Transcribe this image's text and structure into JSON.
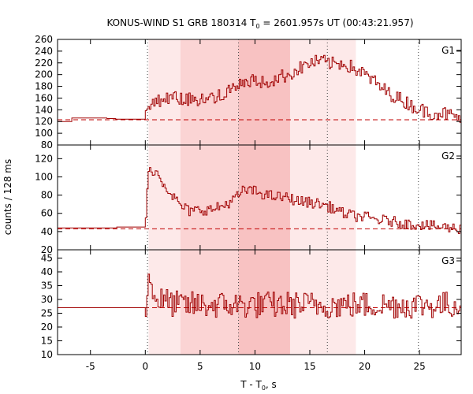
{
  "chart_data": {
    "type": "line",
    "title": "KONUS-WIND S1 GRB 180314 T",
    "title_sub": "0",
    "title_rest": " = 2601.957s UT (00:43:21.957)",
    "xlabel": "T - T",
    "xlabel_sub": "0",
    "xlabel_rest": ", s",
    "ylabel": "counts / 128 ms",
    "xlim": [
      -8,
      28.8
    ],
    "x_ticks": [
      -5,
      0,
      5,
      10,
      15,
      20,
      25
    ],
    "vertical_markers": [
      0.2,
      8.5,
      16.6,
      24.9
    ],
    "shaded_intervals": [
      {
        "x0": 0.3,
        "x1": 3.2,
        "level": "light"
      },
      {
        "x0": 3.2,
        "x1": 13.2,
        "level": "medium"
      },
      {
        "x0": 8.5,
        "x1": 13.2,
        "level": "dark"
      },
      {
        "x0": 13.2,
        "x1": 19.2,
        "level": "light"
      }
    ],
    "panels": [
      {
        "name": "G1",
        "ylim": [
          80,
          260
        ],
        "y_ticks": [
          80,
          100,
          120,
          140,
          160,
          180,
          200,
          220,
          240,
          260
        ],
        "background": 123,
        "pre_trigger": [
          [
            -8,
            120
          ],
          [
            -6.7,
            126
          ],
          [
            -3.5,
            125
          ],
          [
            -2.7,
            124
          ]
        ],
        "anchors": [
          [
            0,
            128
          ],
          [
            0.5,
            150
          ],
          [
            2,
            160
          ],
          [
            4,
            158
          ],
          [
            6,
            160
          ],
          [
            7,
            165
          ],
          [
            8,
            175
          ],
          [
            9,
            185
          ],
          [
            10,
            190
          ],
          [
            11,
            185
          ],
          [
            12,
            195
          ],
          [
            13,
            200
          ],
          [
            14,
            210
          ],
          [
            15,
            220
          ],
          [
            16,
            223
          ],
          [
            17,
            218
          ],
          [
            18,
            220
          ],
          [
            19,
            210
          ],
          [
            20,
            200
          ],
          [
            21,
            185
          ],
          [
            22,
            170
          ],
          [
            23,
            160
          ],
          [
            24,
            150
          ],
          [
            25,
            140
          ],
          [
            26,
            135
          ],
          [
            27,
            135
          ],
          [
            28.8,
            125
          ]
        ],
        "noise": 12
      },
      {
        "name": "G2",
        "ylim": [
          20,
          135
        ],
        "y_ticks": [
          20,
          40,
          60,
          80,
          100,
          120
        ],
        "background": 43,
        "pre_trigger": [
          [
            -8,
            44
          ],
          [
            -2.6,
            45
          ]
        ],
        "anchors": [
          [
            0,
            50
          ],
          [
            0.2,
            105
          ],
          [
            0.8,
            108
          ],
          [
            1.5,
            95
          ],
          [
            2.3,
            82
          ],
          [
            3,
            70
          ],
          [
            4,
            62
          ],
          [
            5,
            64
          ],
          [
            6,
            64
          ],
          [
            7,
            68
          ],
          [
            8,
            75
          ],
          [
            9,
            86
          ],
          [
            10,
            84
          ],
          [
            11,
            80
          ],
          [
            12,
            78
          ],
          [
            13,
            77
          ],
          [
            14,
            73
          ],
          [
            15,
            72
          ],
          [
            16,
            70
          ],
          [
            17,
            66
          ],
          [
            18,
            60
          ],
          [
            19,
            57
          ],
          [
            20,
            56
          ],
          [
            21,
            53
          ],
          [
            22,
            52
          ],
          [
            23,
            50
          ],
          [
            24,
            48
          ],
          [
            25,
            48
          ],
          [
            26,
            46
          ],
          [
            27,
            45
          ],
          [
            28.8,
            43
          ]
        ],
        "noise": 6
      },
      {
        "name": "G3",
        "ylim": [
          10,
          48
        ],
        "y_ticks": [
          10,
          15,
          20,
          25,
          30,
          35,
          40,
          45
        ],
        "background": 27,
        "pre_trigger": [
          [
            -8,
            27
          ],
          [
            -2.6,
            27
          ]
        ],
        "anchors": [
          [
            0,
            27
          ],
          [
            0.2,
            38
          ],
          [
            1,
            30
          ],
          [
            3,
            28
          ],
          [
            10,
            28
          ],
          [
            20,
            28
          ],
          [
            28.8,
            28
          ]
        ],
        "noise": 5
      }
    ],
    "colors": {
      "series": "#a00000",
      "background_line": "#c00000",
      "shade_light": "#fde9e9",
      "shade_medium": "#fbd4d4",
      "shade_dark": "#f8c2c2"
    }
  }
}
